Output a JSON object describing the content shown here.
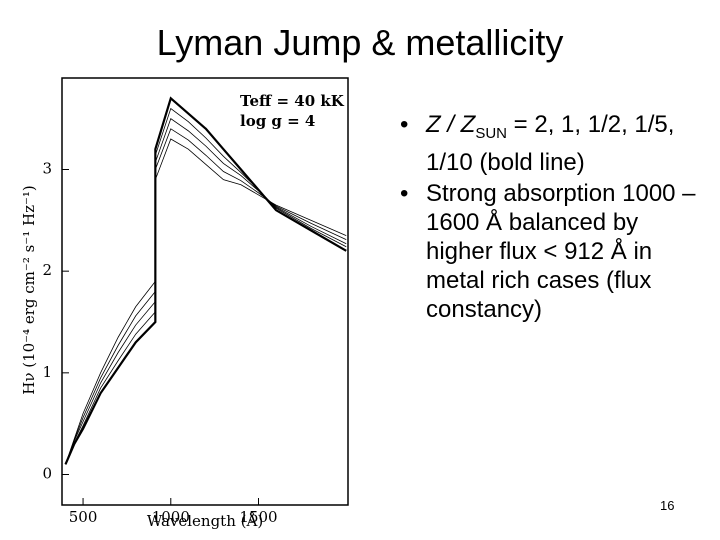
{
  "slide": {
    "title": "Lyman Jump & metallicity",
    "bullets": [
      {
        "italic": "Z / Z",
        "subscript": "SUN",
        "text": " = 2, 1, 1/2, 1/5, 1/10 (bold line)"
      },
      {
        "text": "Strong absorption 1000 – 1600 Å balanced by higher flux < 912 Å in metal rich cases (flux constancy)"
      }
    ],
    "page_number": "16"
  },
  "chart_data": {
    "type": "line",
    "x_label": "Wavelength (Å)",
    "y_label": "Hν (10⁻⁴ erg cm⁻² s⁻¹ Hz⁻¹)",
    "annotations": [
      "Teff = 40 kK",
      "log g = 4"
    ],
    "x": [
      400,
      450,
      500,
      600,
      700,
      800,
      912,
      912,
      1000,
      1100,
      1200,
      1300,
      1400,
      1500,
      1600,
      1800,
      2000
    ],
    "series": [
      {
        "color": "#000000",
        "width": 0.8,
        "values": [
          0.1,
          0.35,
          0.6,
          1.0,
          1.35,
          1.65,
          1.9,
          2.9,
          3.3,
          3.2,
          3.05,
          2.9,
          2.85,
          2.75,
          2.65,
          2.5,
          2.35
        ]
      },
      {
        "color": "#000000",
        "width": 0.8,
        "values": [
          0.1,
          0.34,
          0.56,
          0.95,
          1.27,
          1.56,
          1.8,
          3.0,
          3.4,
          3.29,
          3.14,
          2.98,
          2.89,
          2.77,
          2.64,
          2.47,
          2.31
        ]
      },
      {
        "color": "#000000",
        "width": 0.8,
        "values": [
          0.1,
          0.33,
          0.52,
          0.9,
          1.2,
          1.47,
          1.7,
          3.07,
          3.5,
          3.38,
          3.23,
          3.06,
          2.94,
          2.79,
          2.63,
          2.44,
          2.27
        ]
      },
      {
        "color": "#000000",
        "width": 0.8,
        "values": [
          0.1,
          0.31,
          0.48,
          0.85,
          1.12,
          1.38,
          1.6,
          3.14,
          3.6,
          3.47,
          3.31,
          3.13,
          2.97,
          2.8,
          2.62,
          2.42,
          2.24
        ]
      },
      {
        "color": "#000000",
        "width": 2.2,
        "values": [
          0.1,
          0.3,
          0.45,
          0.8,
          1.05,
          1.3,
          1.5,
          3.2,
          3.7,
          3.55,
          3.4,
          3.2,
          3.0,
          2.8,
          2.6,
          2.4,
          2.2
        ]
      }
    ],
    "xlim": [
      380,
      2010
    ],
    "ylim": [
      -0.3,
      3.9
    ],
    "xticks": [
      500,
      1000,
      1500
    ],
    "yticks": [
      0,
      1,
      2,
      3
    ]
  }
}
